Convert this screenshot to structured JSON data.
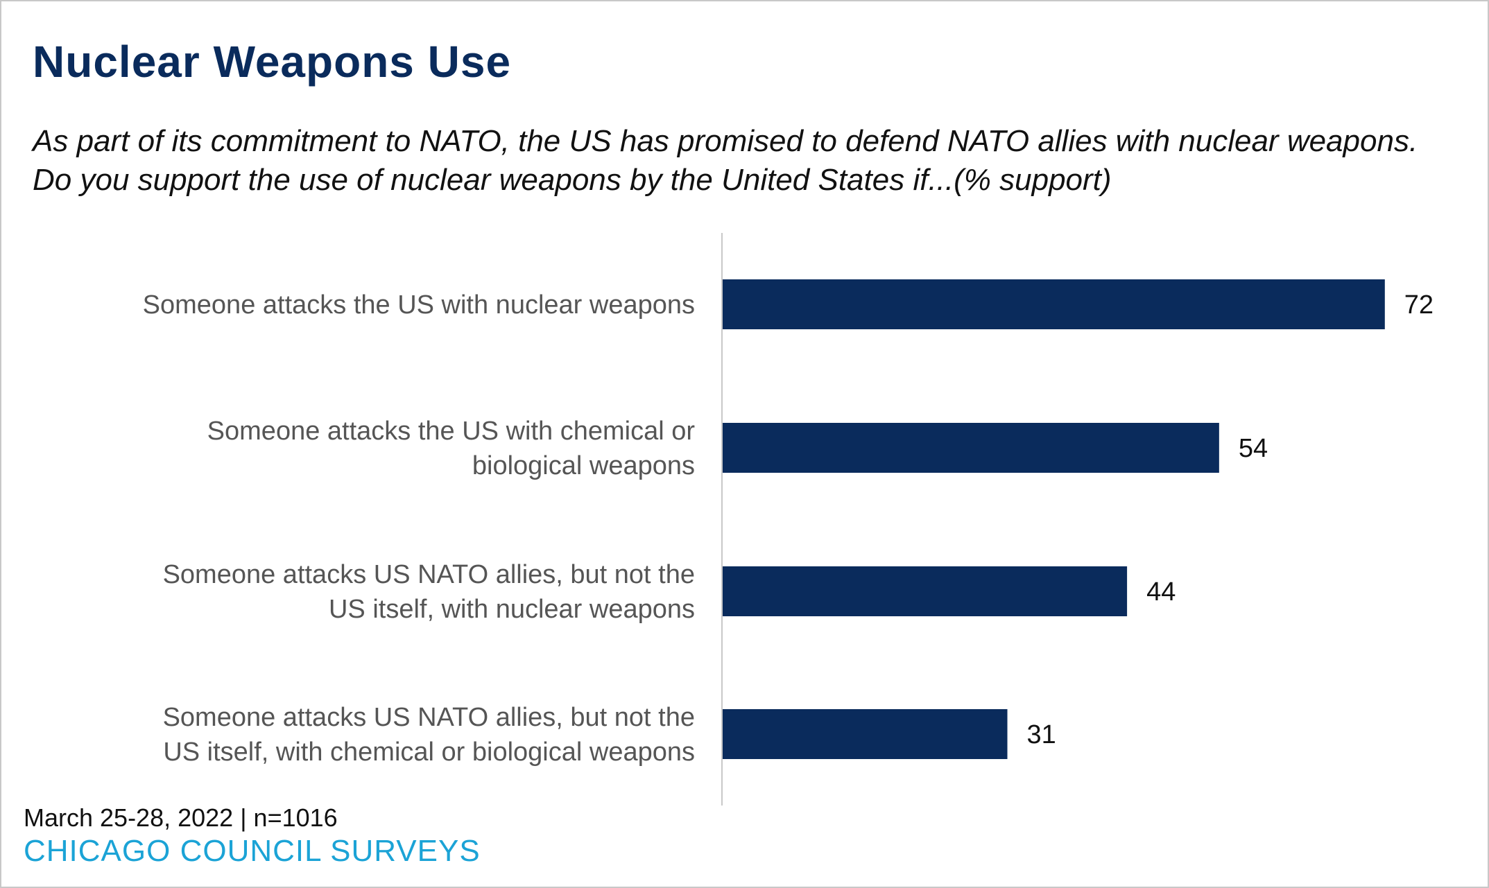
{
  "chart_data": {
    "type": "bar",
    "orientation": "horizontal",
    "title": "Nuclear Weapons Use",
    "subtitle": "As part of its commitment to NATO, the US has promised to defend NATO allies with nuclear weapons. Do you support the use of nuclear weapons by the United States if...(% support)",
    "categories": [
      [
        "Someone attacks the US with nuclear weapons"
      ],
      [
        "Someone attacks the US with chemical or",
        "biological weapons"
      ],
      [
        "Someone attacks US NATO allies, but not the",
        "US itself, with nuclear weapons"
      ],
      [
        "Someone attacks US NATO allies, but not the",
        "US itself, with chemical or biological weapons"
      ]
    ],
    "values": [
      72,
      54,
      44,
      31
    ],
    "data_labels": [
      "72",
      "54",
      "44",
      "31"
    ],
    "xlim": [
      0,
      80
    ],
    "grid": false,
    "legend": "none",
    "bar_color": "#0a2b5c"
  },
  "footer": {
    "note": "March 25-28, 2022 | n=1016",
    "brand": "CHICAGO COUNCIL SURVEYS"
  },
  "colors": {
    "title": "#0a2b5c",
    "brand": "#1ba3d6",
    "bar": "#0a2b5c"
  }
}
